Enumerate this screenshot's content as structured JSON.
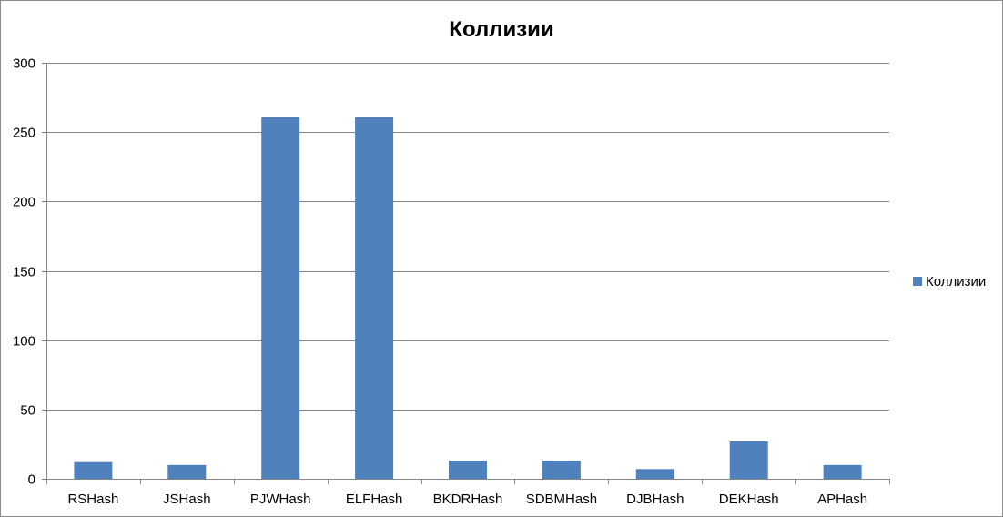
{
  "chart_data": {
    "type": "bar",
    "title": "Коллизии",
    "xlabel": "",
    "ylabel": "",
    "categories": [
      "RSHash",
      "JSHash",
      "PJWHash",
      "ELFHash",
      "BKDRHash",
      "SDBMHash",
      "DJBHash",
      "DEKHash",
      "APHash"
    ],
    "series": [
      {
        "name": "Коллизии",
        "color": "#4f81bd",
        "values": [
          12,
          10,
          261,
          261,
          13,
          13,
          7,
          27,
          10
        ]
      }
    ],
    "ylim": [
      0,
      300
    ],
    "yticks": [
      0,
      50,
      100,
      150,
      200,
      250,
      300
    ],
    "grid": true,
    "legend_position": "right"
  }
}
